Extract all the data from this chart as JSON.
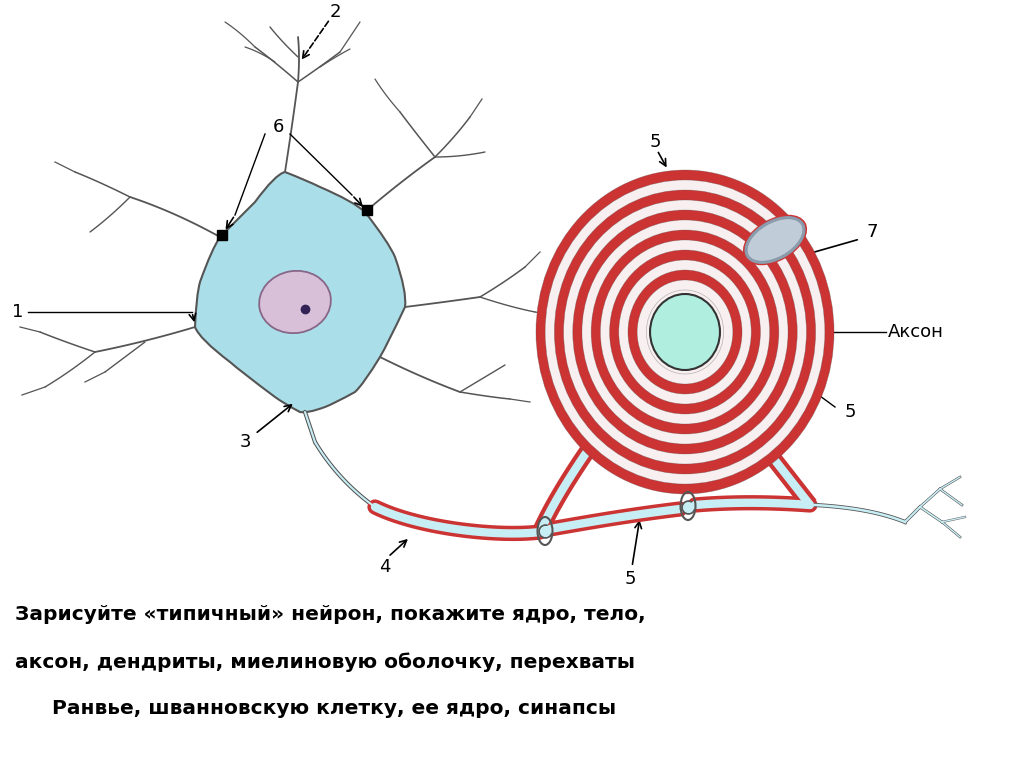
{
  "background_color": "#ffffff",
  "cell_body_color": "#aadee8",
  "cell_body_border": "#555555",
  "nucleus_color": "#d8c0d8",
  "nucleus_border": "#886688",
  "nucleus_dot_color": "#332255",
  "dendrite_color": "#555555",
  "axon_core_color": "#c8eef5",
  "myelin_red_color": "#cc3333",
  "myelin_white_color": "#f8f0f0",
  "schwann_nucleus_color": "#b8c8d8",
  "terminal_color": "#5ab0c8",
  "label_color": "#000000",
  "caption_line1": "Зарисуйте «типичный» нейрон, покажите ядро, тело,",
  "caption_line2": "аксон, дендриты, миелиновую оболочку, перехваты",
  "caption_line3": " Ранвье, шванновскую клетку, ее ядро, синапсы",
  "label_aksone": "Аксон"
}
